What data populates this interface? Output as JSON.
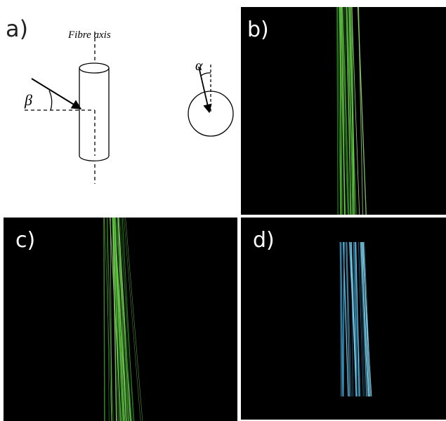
{
  "panels": {
    "a": {
      "label": "a)",
      "axis_label": "Fibre axis",
      "beta": "β",
      "alpha": "α"
    },
    "b": {
      "label": "b)"
    },
    "c": {
      "label": "c)"
    },
    "d": {
      "label": "d)"
    }
  }
}
